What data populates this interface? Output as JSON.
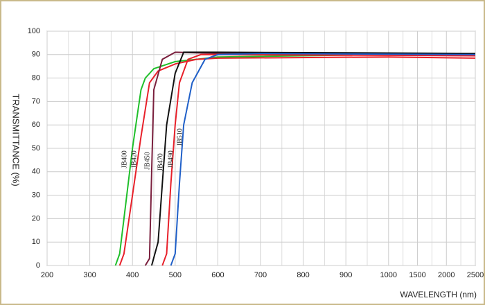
{
  "chart_data": {
    "type": "line",
    "xlabel": "WAVELENGTH (nm)",
    "ylabel": "TRANSMITTANCE  (%)",
    "xlim": [
      200,
      2500
    ],
    "ylim": [
      0,
      100
    ],
    "xticks": [
      200,
      300,
      400,
      500,
      600,
      700,
      800,
      900,
      1000,
      1500,
      2000,
      2500
    ],
    "yticks": [
      0,
      10,
      20,
      30,
      40,
      50,
      60,
      70,
      80,
      90,
      100
    ],
    "grid": true,
    "series": [
      {
        "name": "JB400",
        "color": "#1fbf2a",
        "x": [
          360,
          370,
          380,
          400,
          420,
          430,
          450,
          500,
          600,
          1000,
          2500
        ],
        "values": [
          0,
          5,
          20,
          50,
          75,
          80,
          84,
          87,
          89,
          90,
          90
        ]
      },
      {
        "name": "JB420",
        "color": "#e8202a",
        "x": [
          370,
          380,
          400,
          420,
          440,
          460,
          500,
          550,
          600,
          1000,
          2500
        ],
        "values": [
          0,
          5,
          30,
          55,
          78,
          83,
          86,
          88,
          88.5,
          89,
          88.5
        ]
      },
      {
        "name": "JB450",
        "color": "#7a1f3d",
        "x": [
          430,
          440,
          445,
          450,
          470,
          500,
          600,
          2500
        ],
        "values": [
          0,
          3,
          40,
          75,
          88,
          91,
          90.5,
          90
        ]
      },
      {
        "name": "JB470",
        "color": "#111111",
        "x": [
          445,
          460,
          470,
          480,
          500,
          520,
          600,
          2500
        ],
        "values": [
          0,
          10,
          35,
          60,
          82,
          91,
          91,
          90.5
        ]
      },
      {
        "name": "JB490",
        "color": "#e8202a",
        "x": [
          470,
          480,
          490,
          500,
          510,
          530,
          560,
          600,
          2500
        ],
        "values": [
          0,
          5,
          35,
          60,
          78,
          88,
          90,
          90,
          89.5
        ]
      },
      {
        "name": "JB510",
        "color": "#1f5fc8",
        "x": [
          490,
          500,
          510,
          520,
          540,
          570,
          600,
          700,
          2500
        ],
        "values": [
          0,
          5,
          35,
          60,
          78,
          88,
          90,
          90.5,
          90
        ]
      }
    ]
  }
}
